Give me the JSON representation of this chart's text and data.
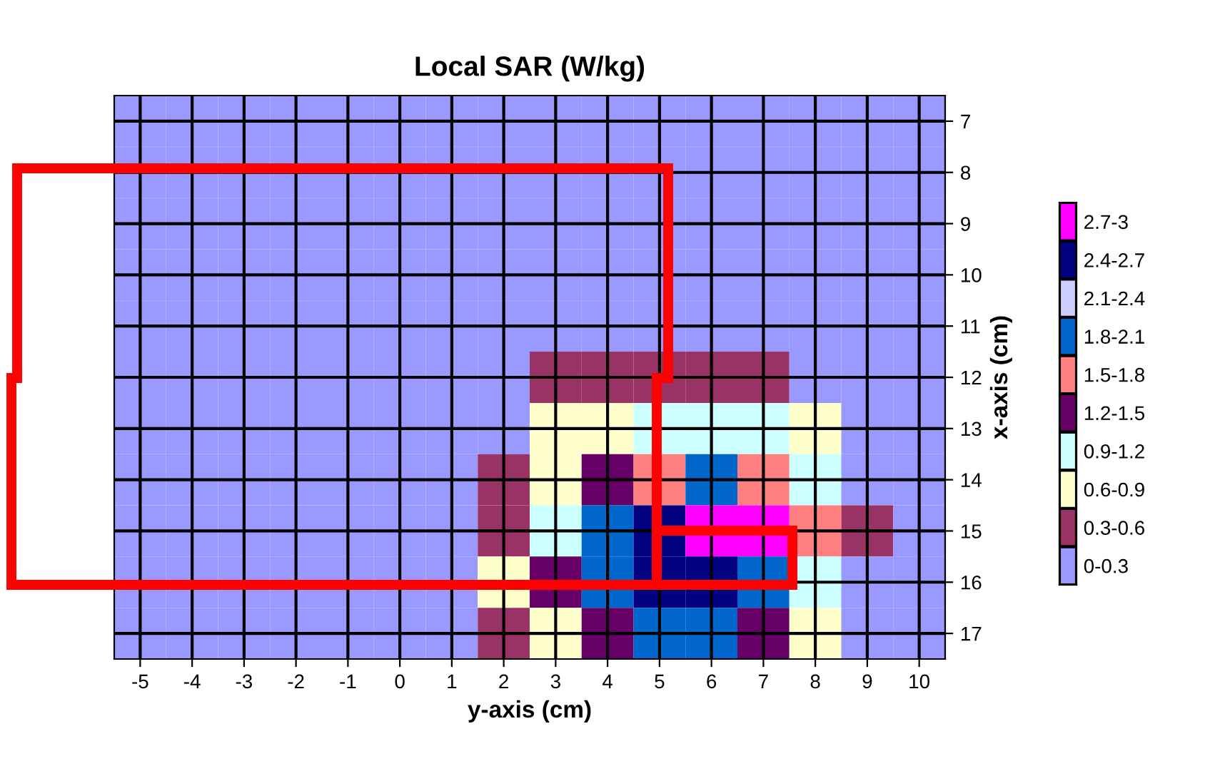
{
  "chart_data": {
    "type": "heatmap",
    "title": "Local SAR (W/kg)",
    "xlabel": "y-axis (cm)",
    "ylabel": "x-axis (cm)",
    "categories": [
      "-5",
      "-4",
      "-3",
      "-2",
      "-1",
      "0",
      "1",
      "2",
      "3",
      "4",
      "5",
      "6",
      "7",
      "8",
      "9",
      "10"
    ],
    "y_categories": [
      "7",
      "8",
      "9",
      "10",
      "11",
      "12",
      "13",
      "14",
      "15",
      "16",
      "17"
    ],
    "cells": [
      [
        0.1,
        0.1,
        0.1,
        0.1,
        0.1,
        0.1,
        0.1,
        0.1,
        0.1,
        0.1,
        0.1,
        0.1,
        0.1,
        0.1,
        0.1,
        0.1
      ],
      [
        0.1,
        0.1,
        0.1,
        0.1,
        0.1,
        0.1,
        0.1,
        0.1,
        0.1,
        0.1,
        0.1,
        0.1,
        0.1,
        0.1,
        0.1,
        0.1
      ],
      [
        0.1,
        0.1,
        0.1,
        0.1,
        0.1,
        0.1,
        0.1,
        0.1,
        0.1,
        0.1,
        0.1,
        0.1,
        0.1,
        0.1,
        0.1,
        0.1
      ],
      [
        0.1,
        0.1,
        0.1,
        0.1,
        0.1,
        0.1,
        0.1,
        0.1,
        0.1,
        0.1,
        0.1,
        0.1,
        0.1,
        0.1,
        0.1,
        0.1
      ],
      [
        0.1,
        0.1,
        0.1,
        0.1,
        0.1,
        0.1,
        0.1,
        0.1,
        0.1,
        0.2,
        0.2,
        0.2,
        0.1,
        0.1,
        0.1,
        0.1
      ],
      [
        0.1,
        0.1,
        0.1,
        0.1,
        0.1,
        0.1,
        0.1,
        0.1,
        0.3,
        0.4,
        0.4,
        0.4,
        0.3,
        0.2,
        0.1,
        0.1
      ],
      [
        0.1,
        0.1,
        0.1,
        0.1,
        0.1,
        0.1,
        0.1,
        0.2,
        0.6,
        0.8,
        0.9,
        1.0,
        0.9,
        0.6,
        0.2,
        0.1
      ],
      [
        0.1,
        0.1,
        0.1,
        0.1,
        0.1,
        0.1,
        0.2,
        0.5,
        0.8,
        1.2,
        1.6,
        1.8,
        1.6,
        0.9,
        0.2,
        0.1
      ],
      [
        0.1,
        0.1,
        0.1,
        0.1,
        0.1,
        0.1,
        0.2,
        0.5,
        1.0,
        1.8,
        2.4,
        2.9,
        2.7,
        1.5,
        0.3,
        0.1
      ],
      [
        0.1,
        0.1,
        0.1,
        0.1,
        0.1,
        0.1,
        0.2,
        0.6,
        1.2,
        1.8,
        2.5,
        2.6,
        2.0,
        1.0,
        0.2,
        0.1
      ],
      [
        0.1,
        0.1,
        0.1,
        0.1,
        0.1,
        0.1,
        0.1,
        0.3,
        0.6,
        1.3,
        1.9,
        2.0,
        1.4,
        0.6,
        0.2,
        0.1
      ]
    ],
    "clim": [
      0,
      3
    ],
    "cticks": [
      {
        "value": 0.15,
        "label": "0-0.3"
      },
      {
        "value": 0.45,
        "label": "0.3-0.6"
      },
      {
        "value": 0.75,
        "label": "0.6-0.9"
      },
      {
        "value": 1.05,
        "label": "0.9-1.2"
      },
      {
        "value": 1.35,
        "label": "1.2-1.5"
      },
      {
        "value": 1.65,
        "label": "1.5-1.8"
      },
      {
        "value": 1.95,
        "label": "1.8-2.1"
      },
      {
        "value": 2.25,
        "label": "2.1-2.4"
      },
      {
        "value": 2.55,
        "label": "2.4-2.7"
      },
      {
        "value": 2.85,
        "label": "2.7-3"
      }
    ],
    "colors": [
      "#9999ff",
      "#993366",
      "#ffffcc",
      "#ccffff",
      "#660066",
      "#ff8080",
      "#0066cc",
      "#ccccff",
      "#000080",
      "#ff00ff"
    ],
    "grid": true
  }
}
